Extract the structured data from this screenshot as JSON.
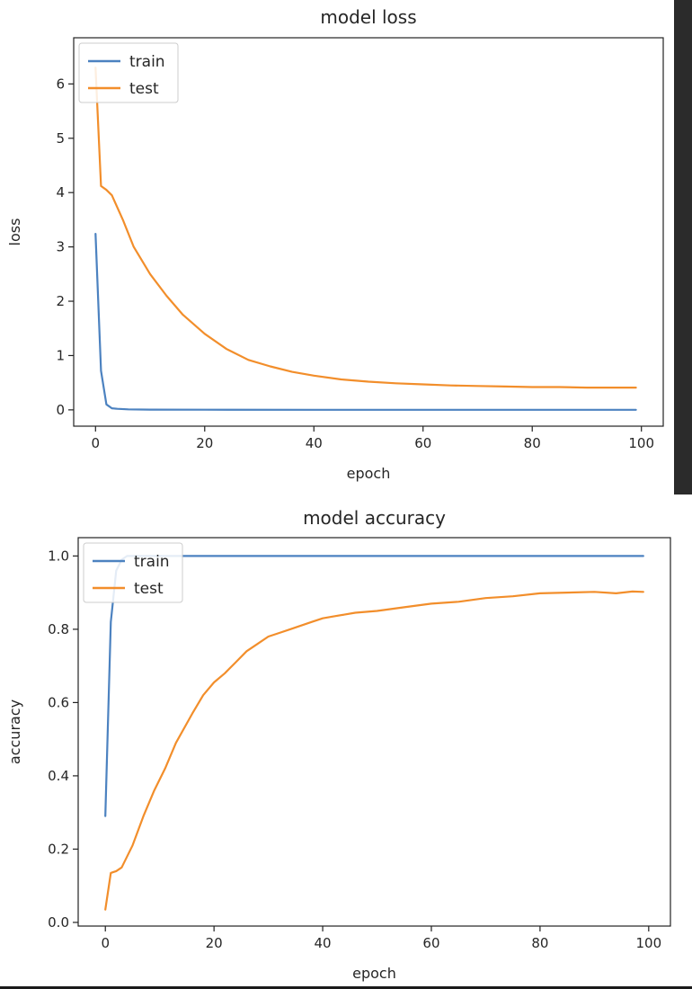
{
  "chart_data": [
    {
      "type": "line",
      "title": "model loss",
      "xlabel": "epoch",
      "ylabel": "loss",
      "xlim": [
        -4,
        104
      ],
      "ylim": [
        -0.3,
        6.85
      ],
      "xticks": [
        0,
        20,
        40,
        60,
        80,
        100
      ],
      "yticks": [
        0,
        1,
        2,
        3,
        4,
        5,
        6
      ],
      "legend_position": "upper-left",
      "grid": false,
      "series": [
        {
          "name": "train",
          "color": "#4c82c0",
          "points": [
            [
              0,
              3.24
            ],
            [
              1,
              0.72
            ],
            [
              2,
              0.1
            ],
            [
              3,
              0.03
            ],
            [
              4,
              0.02
            ],
            [
              6,
              0.01
            ],
            [
              10,
              0.005
            ],
            [
              20,
              0.003
            ],
            [
              40,
              0.002
            ],
            [
              60,
              0.002
            ],
            [
              80,
              0.002
            ],
            [
              99,
              0.002
            ]
          ]
        },
        {
          "name": "test",
          "color": "#f28e2b",
          "points": [
            [
              0,
              6.3
            ],
            [
              1,
              4.12
            ],
            [
              2,
              4.05
            ],
            [
              3,
              3.95
            ],
            [
              5,
              3.5
            ],
            [
              7,
              3.0
            ],
            [
              10,
              2.5
            ],
            [
              13,
              2.1
            ],
            [
              16,
              1.75
            ],
            [
              20,
              1.4
            ],
            [
              24,
              1.12
            ],
            [
              28,
              0.92
            ],
            [
              32,
              0.8
            ],
            [
              36,
              0.7
            ],
            [
              40,
              0.63
            ],
            [
              45,
              0.56
            ],
            [
              50,
              0.52
            ],
            [
              55,
              0.49
            ],
            [
              60,
              0.47
            ],
            [
              65,
              0.45
            ],
            [
              70,
              0.44
            ],
            [
              75,
              0.43
            ],
            [
              80,
              0.42
            ],
            [
              85,
              0.42
            ],
            [
              90,
              0.41
            ],
            [
              95,
              0.41
            ],
            [
              99,
              0.41
            ]
          ]
        }
      ]
    },
    {
      "type": "line",
      "title": "model accuracy",
      "xlabel": "epoch",
      "ylabel": "accuracy",
      "xlim": [
        -5,
        104
      ],
      "ylim": [
        -0.01,
        1.05
      ],
      "xticks": [
        0,
        20,
        40,
        60,
        80,
        100
      ],
      "yticks": [
        0.0,
        0.2,
        0.4,
        0.6,
        0.8,
        1.0
      ],
      "ytick_labels": [
        "0.0",
        "0.2",
        "0.4",
        "0.6",
        "0.8",
        "1.0"
      ],
      "legend_position": "upper-left",
      "grid": false,
      "series": [
        {
          "name": "train",
          "color": "#4c82c0",
          "points": [
            [
              0,
              0.29
            ],
            [
              1,
              0.82
            ],
            [
              2,
              0.96
            ],
            [
              3,
              0.99
            ],
            [
              4,
              1.0
            ],
            [
              6,
              1.0
            ],
            [
              10,
              1.0
            ],
            [
              20,
              1.0
            ],
            [
              40,
              1.0
            ],
            [
              60,
              1.0
            ],
            [
              80,
              1.0
            ],
            [
              99,
              1.0
            ]
          ]
        },
        {
          "name": "test",
          "color": "#f28e2b",
          "points": [
            [
              0,
              0.035
            ],
            [
              1,
              0.135
            ],
            [
              2,
              0.14
            ],
            [
              3,
              0.15
            ],
            [
              5,
              0.21
            ],
            [
              7,
              0.29
            ],
            [
              9,
              0.36
            ],
            [
              11,
              0.42
            ],
            [
              13,
              0.49
            ],
            [
              16,
              0.57
            ],
            [
              18,
              0.62
            ],
            [
              20,
              0.655
            ],
            [
              22,
              0.68
            ],
            [
              24,
              0.71
            ],
            [
              26,
              0.74
            ],
            [
              28,
              0.76
            ],
            [
              30,
              0.78
            ],
            [
              32,
              0.79
            ],
            [
              34,
              0.8
            ],
            [
              36,
              0.81
            ],
            [
              38,
              0.82
            ],
            [
              40,
              0.83
            ],
            [
              42,
              0.835
            ],
            [
              44,
              0.84
            ],
            [
              46,
              0.845
            ],
            [
              50,
              0.85
            ],
            [
              55,
              0.86
            ],
            [
              60,
              0.87
            ],
            [
              65,
              0.875
            ],
            [
              70,
              0.885
            ],
            [
              75,
              0.89
            ],
            [
              80,
              0.898
            ],
            [
              85,
              0.9
            ],
            [
              90,
              0.902
            ],
            [
              94,
              0.898
            ],
            [
              97,
              0.903
            ],
            [
              99,
              0.902
            ]
          ]
        }
      ]
    }
  ]
}
